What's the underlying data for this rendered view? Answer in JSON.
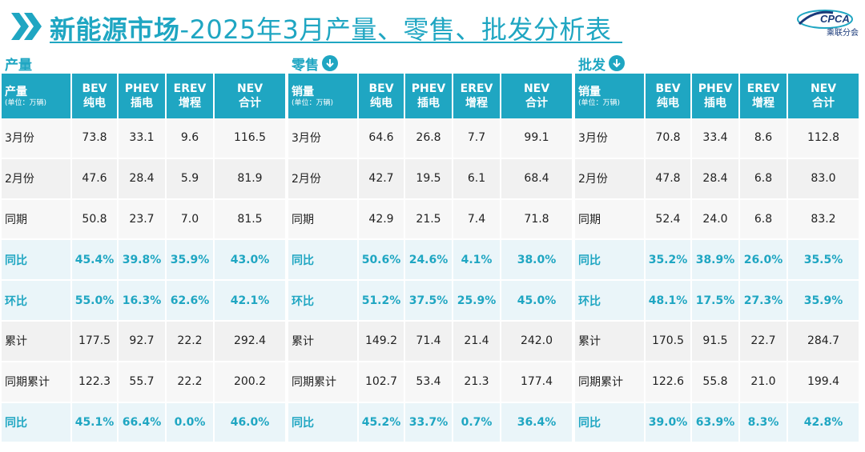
{
  "title_bold": "新能源市场",
  "title_rest": "-2025年3月产量、零售、批发分析表",
  "logo": {
    "text": "CPCA",
    "sub": "乘联分会"
  },
  "colors": {
    "accent": "#1fa6c2"
  },
  "columns": [
    {
      "top": "BEV",
      "bottom": "纯电"
    },
    {
      "top": "PHEV",
      "bottom": "插电"
    },
    {
      "top": "EREV",
      "bottom": "增程"
    },
    {
      "top": "NEV",
      "bottom": "合计"
    }
  ],
  "unit": "(单位：万辆)",
  "panels": [
    {
      "title": "产量",
      "corner": "产量",
      "show_icon": false,
      "rows": [
        {
          "label": "3月份",
          "values": [
            "73.8",
            "33.1",
            "9.6",
            "116.5"
          ],
          "highlight": false
        },
        {
          "label": "2月份",
          "values": [
            "47.6",
            "28.4",
            "5.9",
            "81.9"
          ],
          "highlight": false
        },
        {
          "label": "同期",
          "values": [
            "50.8",
            "23.7",
            "7.0",
            "81.5"
          ],
          "highlight": false
        },
        {
          "label": "同比",
          "values": [
            "45.4%",
            "39.8%",
            "35.9%",
            "43.0%"
          ],
          "highlight": true
        },
        {
          "label": "环比",
          "values": [
            "55.0%",
            "16.3%",
            "62.6%",
            "42.1%"
          ],
          "highlight": true
        },
        {
          "label": "累计",
          "values": [
            "177.5",
            "92.7",
            "22.2",
            "292.4"
          ],
          "highlight": false
        },
        {
          "label": "同期累计",
          "values": [
            "122.3",
            "55.7",
            "22.2",
            "200.2"
          ],
          "highlight": false
        },
        {
          "label": "同比",
          "values": [
            "45.1%",
            "66.4%",
            "0.0%",
            "46.0%"
          ],
          "highlight": true
        }
      ]
    },
    {
      "title": "零售",
      "corner": "销量",
      "show_icon": true,
      "rows": [
        {
          "label": "3月份",
          "values": [
            "64.6",
            "26.8",
            "7.7",
            "99.1"
          ],
          "highlight": false
        },
        {
          "label": "2月份",
          "values": [
            "42.7",
            "19.5",
            "6.1",
            "68.4"
          ],
          "highlight": false
        },
        {
          "label": "同期",
          "values": [
            "42.9",
            "21.5",
            "7.4",
            "71.8"
          ],
          "highlight": false
        },
        {
          "label": "同比",
          "values": [
            "50.6%",
            "24.6%",
            "4.1%",
            "38.0%"
          ],
          "highlight": true
        },
        {
          "label": "环比",
          "values": [
            "51.2%",
            "37.5%",
            "25.9%",
            "45.0%"
          ],
          "highlight": true
        },
        {
          "label": "累计",
          "values": [
            "149.2",
            "71.4",
            "21.4",
            "242.0"
          ],
          "highlight": false
        },
        {
          "label": "同期累计",
          "values": [
            "102.7",
            "53.4",
            "21.3",
            "177.4"
          ],
          "highlight": false
        },
        {
          "label": "同比",
          "values": [
            "45.2%",
            "33.7%",
            "0.7%",
            "36.4%"
          ],
          "highlight": true
        }
      ]
    },
    {
      "title": "批发",
      "corner": "销量",
      "show_icon": true,
      "rows": [
        {
          "label": "3月份",
          "values": [
            "70.8",
            "33.4",
            "8.6",
            "112.8"
          ],
          "highlight": false
        },
        {
          "label": "2月份",
          "values": [
            "47.8",
            "28.4",
            "6.8",
            "83.0"
          ],
          "highlight": false
        },
        {
          "label": "同期",
          "values": [
            "52.4",
            "24.0",
            "6.8",
            "83.2"
          ],
          "highlight": false
        },
        {
          "label": "同比",
          "values": [
            "35.2%",
            "38.9%",
            "26.0%",
            "35.5%"
          ],
          "highlight": true
        },
        {
          "label": "环比",
          "values": [
            "48.1%",
            "17.5%",
            "27.3%",
            "35.9%"
          ],
          "highlight": true
        },
        {
          "label": "累计",
          "values": [
            "170.5",
            "91.5",
            "22.7",
            "284.7"
          ],
          "highlight": false
        },
        {
          "label": "同期累计",
          "values": [
            "122.6",
            "55.8",
            "21.0",
            "199.4"
          ],
          "highlight": false
        },
        {
          "label": "同比",
          "values": [
            "39.0%",
            "63.9%",
            "8.3%",
            "42.8%"
          ],
          "highlight": true
        }
      ]
    }
  ]
}
